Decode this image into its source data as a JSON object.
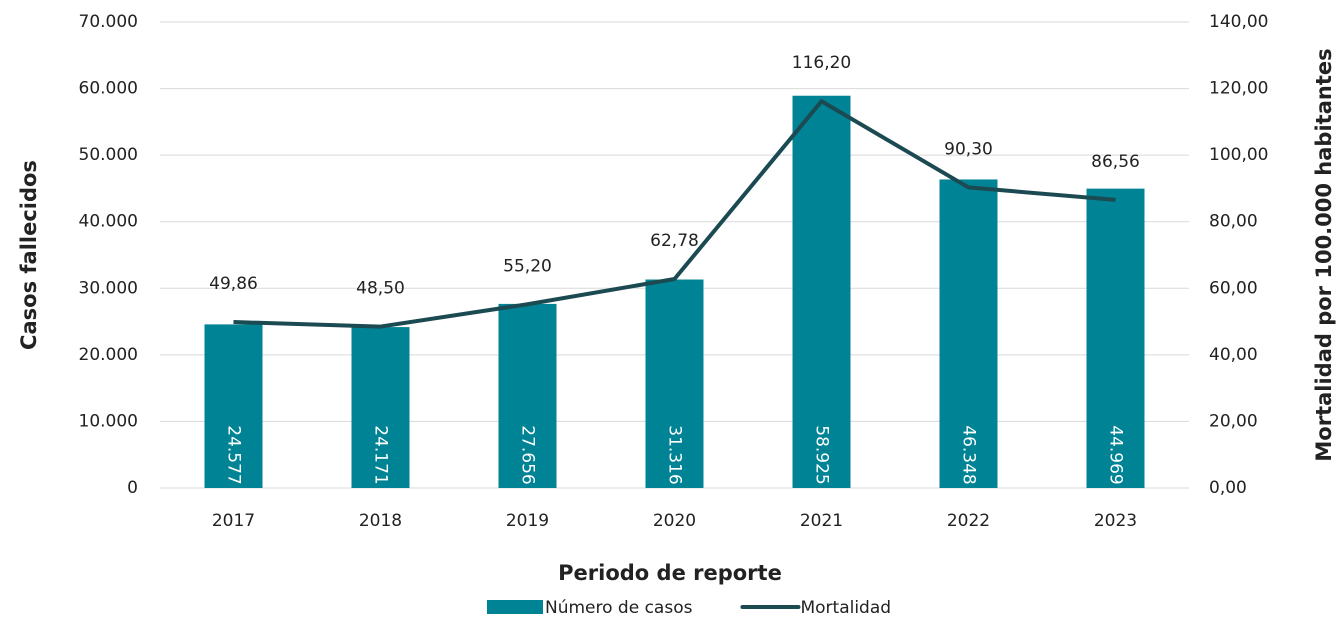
{
  "chart_data": {
    "type": "combo",
    "x_label": "Periodo de reporte",
    "y_label": "Casos fallecidos",
    "y2_label": "Mortalidad por 100.000 habitantes",
    "categories": [
      "2017",
      "2018",
      "2019",
      "2020",
      "2021",
      "2022",
      "2023"
    ],
    "series": [
      {
        "name": "Número de casos",
        "type": "bar",
        "color": "#008394",
        "values": [
          24577,
          24171,
          27656,
          31316,
          58925,
          46348,
          44969
        ],
        "value_labels": [
          "24.577",
          "24.171",
          "27.656",
          "31.316",
          "58.925",
          "46.348",
          "44.969"
        ]
      },
      {
        "name": "Mortalidad",
        "type": "line",
        "axis": "y2",
        "color": "#1b4a52",
        "values": [
          49.86,
          48.5,
          55.2,
          62.78,
          116.2,
          90.3,
          86.56
        ],
        "value_labels": [
          "49,86",
          "48,50",
          "55,20",
          "62,78",
          "116,20",
          "90,30",
          "86,56"
        ]
      }
    ],
    "ylim": [
      0,
      70000
    ],
    "yticks": [
      0,
      {
        "value": 10000,
        "label": "10.000"
      },
      {
        "value": 20000,
        "label": "20.000"
      },
      {
        "value": 30000,
        "label": "30.000"
      },
      {
        "value": 40000,
        "label": "40.000"
      },
      {
        "value": 50000,
        "label": "50.000"
      },
      {
        "value": 60000,
        "label": "60.000"
      },
      {
        "value": 70000,
        "label": "70.000"
      }
    ],
    "y2lim": [
      0,
      140
    ],
    "y2ticks": [
      {
        "value": 0,
        "label": "0,00"
      },
      {
        "value": 20,
        "label": "20,00"
      },
      {
        "value": 40,
        "label": "40,00"
      },
      {
        "value": 60,
        "label": "60,00"
      },
      {
        "value": 80,
        "label": "80,00"
      },
      {
        "value": 100,
        "label": "100,00"
      },
      {
        "value": 120,
        "label": "120,00"
      },
      {
        "value": 140,
        "label": "140,00"
      }
    ],
    "grid": true,
    "legend": "bottom"
  }
}
